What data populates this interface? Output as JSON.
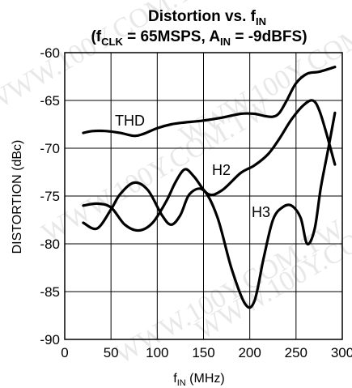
{
  "chart_data": {
    "type": "line",
    "title": {
      "line1": "Distortion vs. f",
      "line1_sub": "IN",
      "line2_a": "(f",
      "line2_sub1": "CLK",
      "line2_b": " = 65MSPS, A",
      "line2_sub2": "IN",
      "line2_c": " = -9dBFS)"
    },
    "xlabel": {
      "base": "f",
      "sub": "IN",
      "rest": " (MHz)"
    },
    "ylabel": "DISTORTION (dBc)",
    "xlim": [
      0,
      300
    ],
    "ylim": [
      -90,
      -60
    ],
    "xticks": [
      "0",
      "50",
      "100",
      "150",
      "200",
      "250",
      "300"
    ],
    "yticks": [
      "-60",
      "-65",
      "-70",
      "-75",
      "-80",
      "-85",
      "-90"
    ],
    "grid": true,
    "legend": "none",
    "series": [
      {
        "name": "THD",
        "x": [
          20,
          30,
          45,
          60,
          75,
          85,
          100,
          115,
          130,
          150,
          170,
          190,
          205,
          215,
          225,
          232,
          240,
          250,
          262,
          275,
          292
        ],
        "y": [
          -68.4,
          -68.2,
          -68.2,
          -68.4,
          -68.7,
          -68.5,
          -67.9,
          -67.5,
          -67.3,
          -67.1,
          -66.8,
          -66.4,
          -66.4,
          -66.6,
          -66.7,
          -66.3,
          -65,
          -63.2,
          -62.2,
          -62,
          -61.5
        ]
      },
      {
        "name": "H2",
        "x": [
          20,
          35,
          50,
          65,
          80,
          95,
          110,
          120,
          130,
          140,
          155,
          170,
          190,
          205,
          220,
          232,
          245,
          258,
          268,
          275,
          283,
          292
        ],
        "y": [
          -76,
          -75.8,
          -76.2,
          -78,
          -78.6,
          -77.8,
          -75.5,
          -73.5,
          -72.2,
          -73,
          -74.8,
          -74.4,
          -72.6,
          -71.8,
          -70.6,
          -69,
          -67,
          -65.5,
          -65,
          -66,
          -68.5,
          -71.7
        ]
      },
      {
        "name": "H3",
        "x": [
          20,
          35,
          50,
          60,
          75,
          90,
          105,
          115,
          125,
          135,
          150,
          165,
          180,
          195,
          205,
          215,
          225,
          235,
          245,
          255,
          262,
          270,
          277,
          285,
          292
        ],
        "y": [
          -77.8,
          -78.4,
          -76.4,
          -74.8,
          -73.6,
          -74.4,
          -77,
          -78,
          -77,
          -74.8,
          -74.4,
          -77.2,
          -82.5,
          -86.3,
          -86,
          -81.5,
          -77.5,
          -76.2,
          -76,
          -77.3,
          -80,
          -78.5,
          -74,
          -70,
          -66.3
        ]
      }
    ],
    "annotations": [
      "THD",
      "H2",
      "H3"
    ]
  },
  "watermark": "WWW.100Y.COM.TW"
}
